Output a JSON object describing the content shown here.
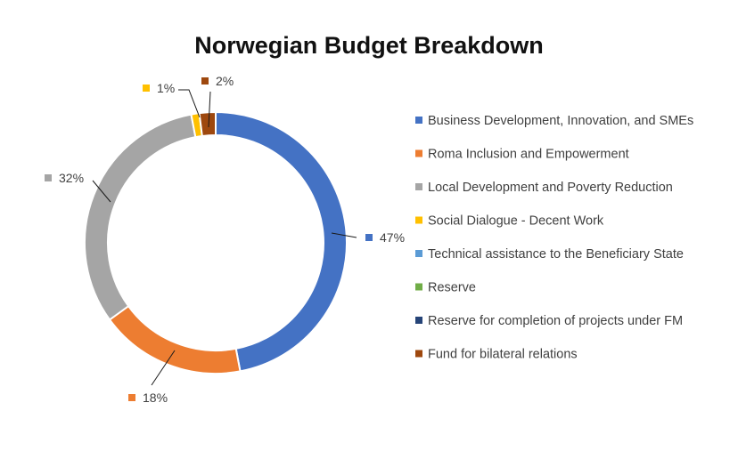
{
  "chart_data": {
    "type": "pie",
    "title": "Norwegian Budget Breakdown",
    "categories": [
      "Business Development, Innovation, and SMEs",
      "Roma Inclusion and Empowerment",
      "Local Development and Poverty Reduction",
      "Social Dialogue - Decent Work",
      "Technical assistance to the Beneficiary State",
      "Reserve",
      "Reserve for completion of projects under FM",
      "Fund for bilateral relations"
    ],
    "values": [
      47,
      18,
      32,
      1,
      0,
      0,
      0,
      2
    ],
    "data_labels": [
      "47%",
      "18%",
      "32%",
      "1%",
      "",
      "",
      "",
      "2%"
    ],
    "colors": [
      "#4472C4",
      "#ED7D31",
      "#A5A5A5",
      "#FFC000",
      "#5B9BD5",
      "#70AD47",
      "#264478",
      "#9E480E"
    ],
    "legend_position": "right"
  }
}
